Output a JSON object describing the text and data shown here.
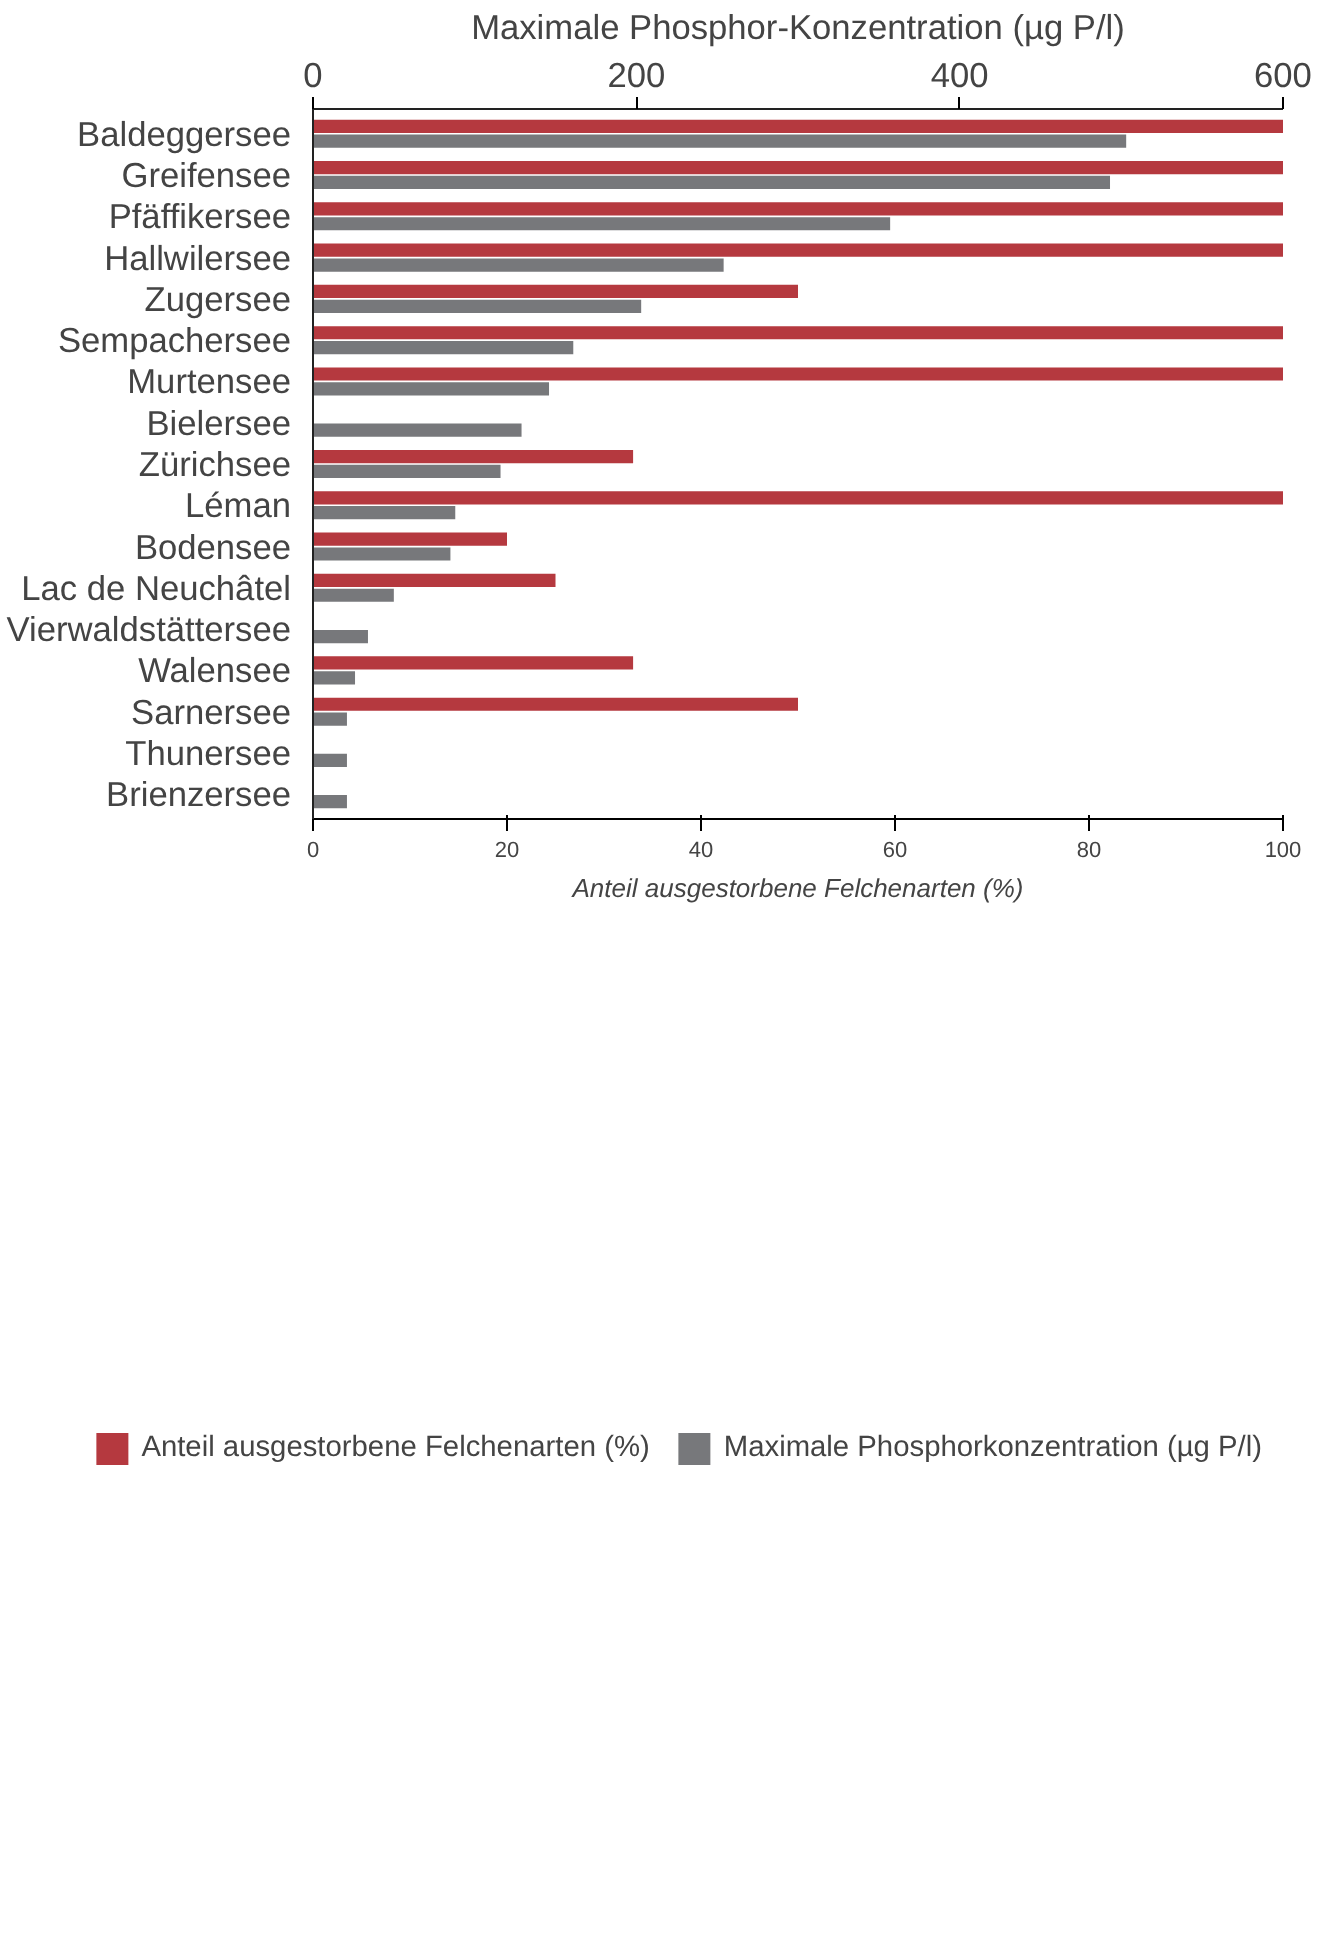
{
  "chart_data": {
    "type": "bar",
    "orientation": "horizontal",
    "categories": [
      "Baldeggersee",
      "Greifensee",
      "Pfäffikersee",
      "Hallwilersee",
      "Zugersee",
      "Sempachersee",
      "Murtensee",
      "Bielersee",
      "Zürichsee",
      "Léman",
      "Bodensee",
      "Lac de Neuchâtel",
      "Vierwaldstättersee",
      "Walensee",
      "Sarnersee",
      "Thunersee",
      "Brienzersee"
    ],
    "series": [
      {
        "name": "Anteil ausgestorbene Felchenarten (%)",
        "color": "#b5393f",
        "values": [
          100,
          100,
          100,
          100,
          50,
          100,
          100,
          0,
          33,
          100,
          20,
          25,
          0,
          33,
          50,
          0,
          0
        ]
      },
      {
        "name": "Maximale Phosphorkonzentration (µg P/l)",
        "color": "#77787b",
        "axis": "x2",
        "values": [
          503,
          493,
          357,
          254,
          203,
          161,
          146,
          129,
          116,
          88,
          85,
          50,
          34,
          26,
          21,
          21,
          21
        ]
      }
    ],
    "xlabel": "Anteil ausgestorbene Felchenarten (%)",
    "xlim": [
      0,
      100
    ],
    "xticks": [
      0,
      20,
      40,
      60,
      80,
      100
    ],
    "x2label": "Maximale Phosphor-Konzentration (µg P/l)",
    "x2lim": [
      0,
      600
    ],
    "x2ticks": [
      0,
      200,
      400,
      600
    ],
    "grid": false,
    "legend": "bottom"
  }
}
